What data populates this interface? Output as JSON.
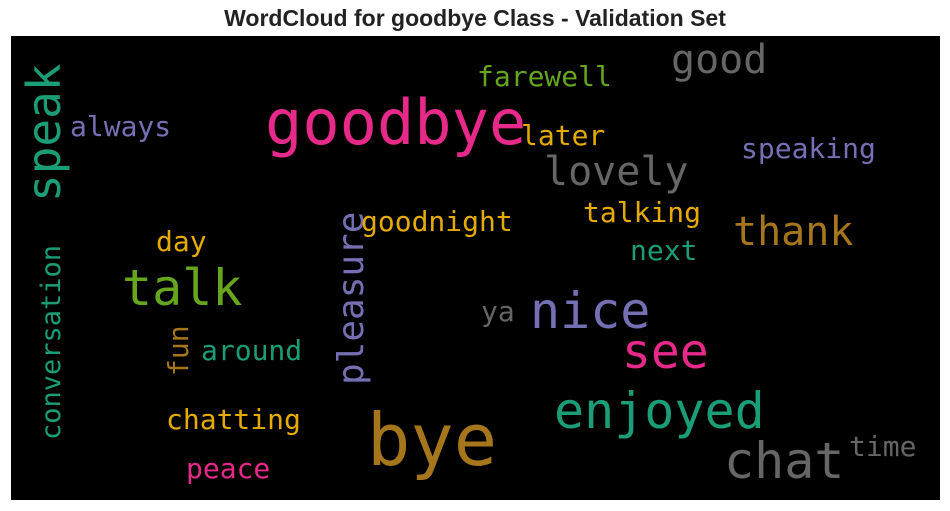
{
  "chart_data": {
    "type": "wordcloud",
    "title": "WordCloud for goodbye Class - Validation Set",
    "background": "#000000",
    "words": [
      {
        "text": "goodbye",
        "color": "#e7298a",
        "orientation": "horizontal"
      },
      {
        "text": "bye",
        "color": "#a6761d",
        "orientation": "horizontal"
      },
      {
        "text": "chat",
        "color": "#666666",
        "orientation": "horizontal"
      },
      {
        "text": "nice",
        "color": "#7570b3",
        "orientation": "horizontal"
      },
      {
        "text": "enjoyed",
        "color": "#1b9e77",
        "orientation": "horizontal"
      },
      {
        "text": "talk",
        "color": "#66a61e",
        "orientation": "horizontal"
      },
      {
        "text": "see",
        "color": "#e7298a",
        "orientation": "horizontal"
      },
      {
        "text": "speak",
        "color": "#1b9e77",
        "orientation": "vertical"
      },
      {
        "text": "pleasure",
        "color": "#7570b3",
        "orientation": "vertical"
      },
      {
        "text": "lovely",
        "color": "#666666",
        "orientation": "horizontal"
      },
      {
        "text": "thank",
        "color": "#a6761d",
        "orientation": "horizontal"
      },
      {
        "text": "good",
        "color": "#666666",
        "orientation": "horizontal"
      },
      {
        "text": "conversation",
        "color": "#1b9e77",
        "orientation": "vertical"
      },
      {
        "text": "farewell",
        "color": "#66a61e",
        "orientation": "horizontal"
      },
      {
        "text": "always",
        "color": "#7570b3",
        "orientation": "horizontal"
      },
      {
        "text": "later",
        "color": "#e6ab02",
        "orientation": "horizontal"
      },
      {
        "text": "speaking",
        "color": "#7570b3",
        "orientation": "horizontal"
      },
      {
        "text": "goodnight",
        "color": "#e6ab02",
        "orientation": "horizontal"
      },
      {
        "text": "talking",
        "color": "#e6ab02",
        "orientation": "horizontal"
      },
      {
        "text": "day",
        "color": "#e6ab02",
        "orientation": "horizontal"
      },
      {
        "text": "next",
        "color": "#1b9e77",
        "orientation": "horizontal"
      },
      {
        "text": "ya",
        "color": "#666666",
        "orientation": "horizontal"
      },
      {
        "text": "fun",
        "color": "#a6761d",
        "orientation": "vertical"
      },
      {
        "text": "around",
        "color": "#1b9e77",
        "orientation": "horizontal"
      },
      {
        "text": "chatting",
        "color": "#e6ab02",
        "orientation": "horizontal"
      },
      {
        "text": "peace",
        "color": "#e7298a",
        "orientation": "horizontal"
      },
      {
        "text": "time",
        "color": "#666666",
        "orientation": "horizontal"
      }
    ]
  }
}
